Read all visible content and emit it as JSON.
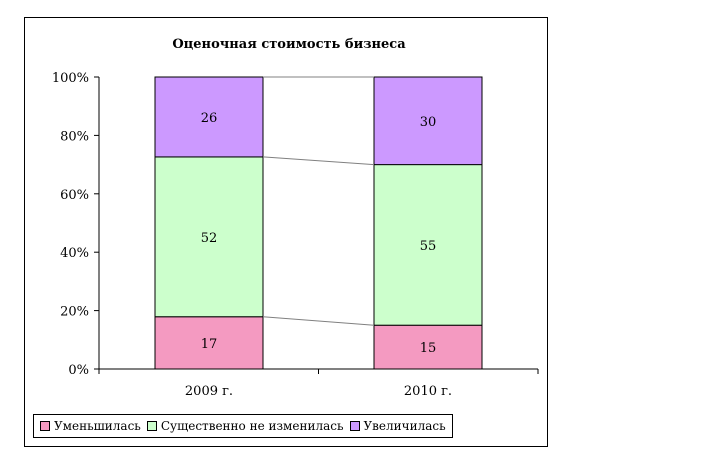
{
  "chart_data": {
    "type": "bar",
    "stacked_percent": true,
    "title": "Оценочная стоимость бизнеса",
    "categories": [
      "2009 г.",
      "2010 г."
    ],
    "series": [
      {
        "name": "Уменьшилась",
        "values": [
          17,
          15
        ],
        "color": "#f49ac1"
      },
      {
        "name": "Существенно не изменилась",
        "values": [
          52,
          55
        ],
        "color": "#ccffcc"
      },
      {
        "name": "Увеличилась",
        "values": [
          26,
          30
        ],
        "color": "#cc99ff"
      }
    ],
    "yticks": [
      "0%",
      "20%",
      "40%",
      "60%",
      "80%",
      "100%"
    ],
    "ylim": [
      0,
      100
    ],
    "series_lines": true,
    "legend_position": "bottom",
    "grid": false
  }
}
